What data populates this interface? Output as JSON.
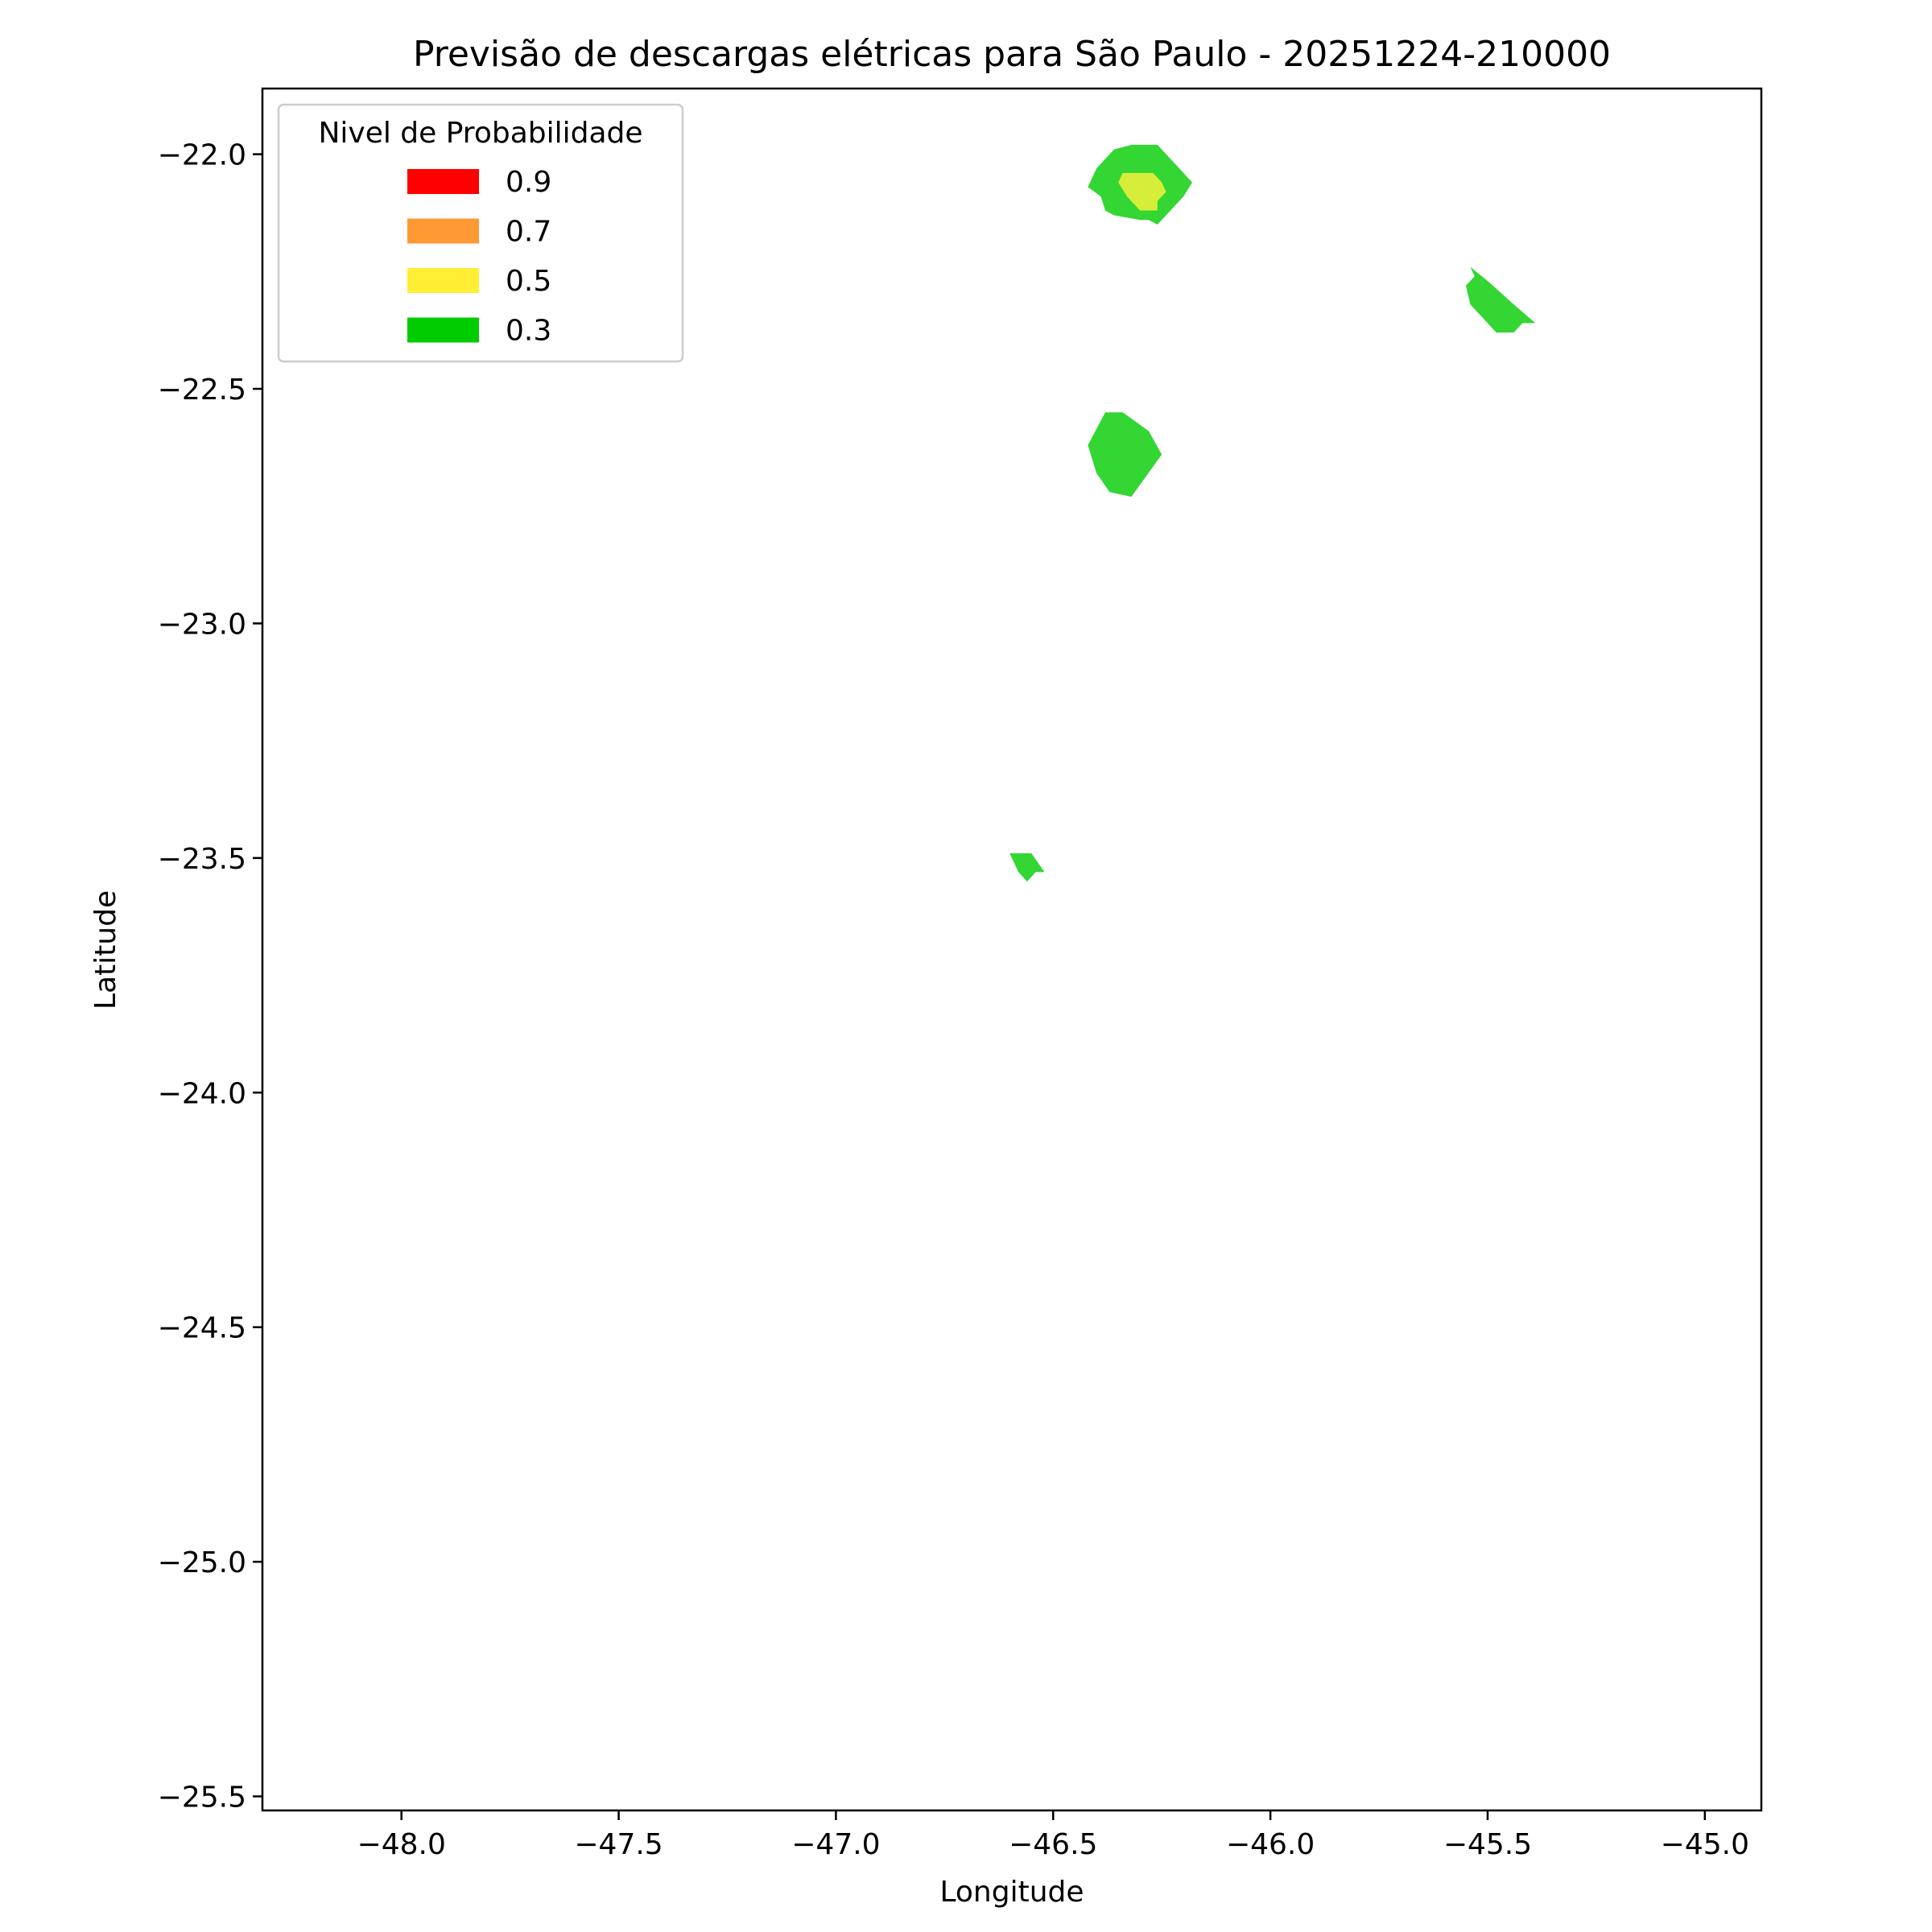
{
  "chart_data": {
    "type": "contour",
    "title": "Previsão de descargas elétricas para São Paulo - 20251224-210000",
    "xlabel": "Longitude",
    "ylabel": "Latitude",
    "xlim": [
      -48.32,
      -44.87
    ],
    "ylim": [
      -25.53,
      -21.86
    ],
    "xticks": [
      -48.0,
      -47.5,
      -47.0,
      -46.5,
      -46.0,
      -45.5,
      -45.0
    ],
    "xtick_labels": [
      "−48.0",
      "−47.5",
      "−47.0",
      "−46.5",
      "−46.0",
      "−45.5",
      "−45.0"
    ],
    "yticks": [
      -22.0,
      -22.5,
      -23.0,
      -23.5,
      -24.0,
      -24.5,
      -25.0,
      -25.5
    ],
    "ytick_labels": [
      "−22.0",
      "−22.5",
      "−23.0",
      "−23.5",
      "−24.0",
      "−24.5",
      "−25.0",
      "−25.5"
    ],
    "grid": false,
    "legend": {
      "title": "Nivel de Probabilidade",
      "placement": "top-left",
      "entries": [
        {
          "label": "0.9",
          "color": "#ff0000"
        },
        {
          "label": "0.7",
          "color": "#ff9933"
        },
        {
          "label": "0.5",
          "color": "#ffee33"
        },
        {
          "label": "0.3",
          "color": "#00cc00"
        }
      ]
    },
    "regions": [
      {
        "level": "0.3",
        "color": "#33d633",
        "points": [
          [
            -46.4,
            -22.03
          ],
          [
            -46.36,
            -21.99
          ],
          [
            -46.32,
            -21.98
          ],
          [
            -46.26,
            -21.98
          ],
          [
            -46.23,
            -22.01
          ],
          [
            -46.2,
            -22.04
          ],
          [
            -46.18,
            -22.06
          ],
          [
            -46.2,
            -22.09
          ],
          [
            -46.23,
            -22.12
          ],
          [
            -46.26,
            -22.15
          ],
          [
            -46.28,
            -22.14
          ],
          [
            -46.3,
            -22.14
          ],
          [
            -46.36,
            -22.13
          ],
          [
            -46.38,
            -22.12
          ],
          [
            -46.39,
            -22.09
          ],
          [
            -46.42,
            -22.07
          ],
          [
            -46.41,
            -22.05
          ]
        ]
      },
      {
        "level": "0.5",
        "color": "#d6ee3a",
        "points": [
          [
            -46.35,
            -22.06
          ],
          [
            -46.34,
            -22.04
          ],
          [
            -46.3,
            -22.04
          ],
          [
            -46.27,
            -22.04
          ],
          [
            -46.25,
            -22.06
          ],
          [
            -46.24,
            -22.08
          ],
          [
            -46.26,
            -22.1
          ],
          [
            -46.26,
            -22.12
          ],
          [
            -46.3,
            -22.12
          ],
          [
            -46.33,
            -22.09
          ]
        ]
      },
      {
        "level": "0.3",
        "color": "#33d633",
        "points": [
          [
            -45.54,
            -22.24
          ],
          [
            -45.5,
            -22.27
          ],
          [
            -45.44,
            -22.32
          ],
          [
            -45.39,
            -22.36
          ],
          [
            -45.42,
            -22.36
          ],
          [
            -45.44,
            -22.38
          ],
          [
            -45.48,
            -22.38
          ],
          [
            -45.52,
            -22.34
          ],
          [
            -45.54,
            -22.32
          ],
          [
            -45.55,
            -22.28
          ],
          [
            -45.53,
            -22.26
          ]
        ]
      },
      {
        "level": "0.3",
        "color": "#33d633",
        "points": [
          [
            -46.42,
            -22.62
          ],
          [
            -46.38,
            -22.55
          ],
          [
            -46.34,
            -22.55
          ],
          [
            -46.28,
            -22.59
          ],
          [
            -46.25,
            -22.64
          ],
          [
            -46.32,
            -22.73
          ],
          [
            -46.37,
            -22.72
          ],
          [
            -46.4,
            -22.68
          ]
        ]
      },
      {
        "level": "0.3",
        "color": "#33d633",
        "points": [
          [
            -46.6,
            -23.49
          ],
          [
            -46.55,
            -23.49
          ],
          [
            -46.52,
            -23.53
          ],
          [
            -46.54,
            -23.53
          ],
          [
            -46.56,
            -23.55
          ],
          [
            -46.58,
            -23.53
          ]
        ]
      }
    ]
  }
}
